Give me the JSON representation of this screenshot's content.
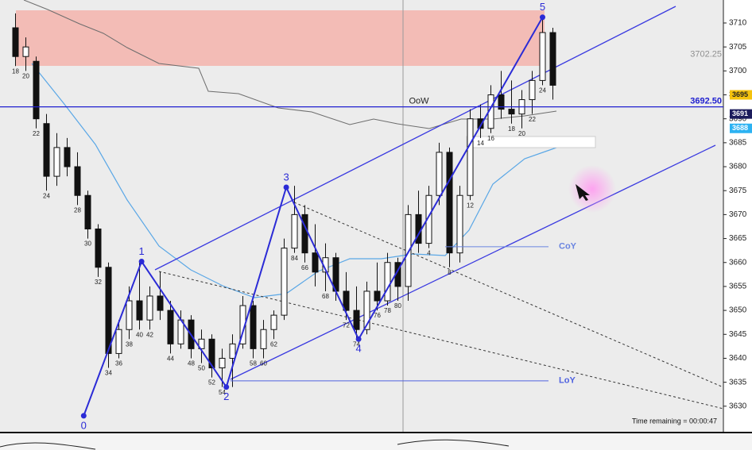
{
  "chart_data": {
    "type": "candlestick",
    "ylim": [
      3624.5,
      3714.8
    ],
    "yticks": [
      3630,
      3635,
      3640,
      3645,
      3650,
      3655,
      3660,
      3665,
      3670,
      3675,
      3680,
      3685,
      3690,
      3695,
      3700,
      3705,
      3710
    ],
    "xlim": [
      -1.5,
      68.5
    ],
    "x": [
      0,
      1,
      2,
      3,
      4,
      5,
      6,
      7,
      8,
      9,
      10,
      11,
      12,
      13,
      14,
      15,
      16,
      17,
      18,
      19,
      20,
      21,
      22,
      23,
      24,
      25,
      26,
      27,
      28,
      29,
      30,
      31,
      32,
      33,
      34,
      35,
      36,
      37,
      38,
      39,
      40,
      41,
      42,
      43,
      44,
      45,
      46,
      47,
      48,
      49,
      50,
      51,
      52
    ],
    "open": [
      3709,
      3703,
      3702,
      3689,
      3678,
      3684,
      3680,
      3674,
      3667,
      3659,
      3641,
      3646,
      3652,
      3648,
      3653,
      3650,
      3643,
      3648,
      3642,
      3644,
      3638,
      3640,
      3643,
      3651,
      3642,
      3646,
      3649,
      3663,
      3670,
      3662,
      3658,
      3661,
      3654,
      3650,
      3646,
      3654,
      3652,
      3660,
      3655,
      3670,
      3664,
      3674,
      3683,
      3662,
      3674,
      3690,
      3688,
      3695,
      3692,
      3691,
      3694,
      3698,
      3708
    ],
    "high": [
      3712,
      3707,
      3703,
      3691,
      3687,
      3686,
      3683,
      3675,
      3668,
      3660,
      3648,
      3655,
      3660,
      3655,
      3658,
      3652,
      3650,
      3649,
      3646,
      3645,
      3642,
      3645,
      3653,
      3652,
      3648,
      3650,
      3665,
      3676,
      3672,
      3668,
      3664,
      3662,
      3658,
      3655,
      3656,
      3660,
      3662,
      3661,
      3672,
      3675,
      3676,
      3685,
      3684,
      3676,
      3692,
      3693,
      3697,
      3700,
      3698,
      3696,
      3700,
      3711,
      3709
    ],
    "low": [
      3701,
      3700,
      3688,
      3675,
      3676,
      3678,
      3672,
      3665,
      3657,
      3638,
      3640,
      3644,
      3646,
      3646,
      3648,
      3641,
      3642,
      3640,
      3639,
      3636,
      3634,
      3634,
      3642,
      3640,
      3640,
      3644,
      3648,
      3662,
      3660,
      3655,
      3654,
      3652,
      3648,
      3644,
      3645,
      3650,
      3651,
      3652,
      3652,
      3662,
      3663,
      3672,
      3659,
      3660,
      3673,
      3686,
      3687,
      3690,
      3689,
      3688,
      3691,
      3697,
      3694
    ],
    "close": [
      3703,
      3705,
      3690,
      3678,
      3684,
      3680,
      3674,
      3667,
      3659,
      3641,
      3646,
      3652,
      3648,
      3653,
      3650,
      3643,
      3648,
      3642,
      3644,
      3638,
      3640,
      3643,
      3651,
      3642,
      3646,
      3649,
      3663,
      3670,
      3662,
      3658,
      3661,
      3654,
      3650,
      3646,
      3654,
      3652,
      3660,
      3655,
      3670,
      3664,
      3674,
      3683,
      3662,
      3674,
      3690,
      3688,
      3695,
      3692,
      3691,
      3694,
      3698,
      3708,
      3697
    ],
    "bar_labels": [
      "18",
      "20",
      "22",
      "24",
      null,
      null,
      "28",
      "30",
      "32",
      "34",
      "36",
      "38",
      "40",
      "42",
      null,
      "44",
      null,
      "48",
      "50",
      "52",
      "54",
      null,
      null,
      "58",
      "60",
      "62",
      null,
      "84",
      "66",
      null,
      "68",
      null,
      "72",
      "74",
      null,
      "76",
      "78",
      "80",
      null,
      null,
      "4",
      null,
      "8",
      null,
      "12",
      "14",
      "16",
      null,
      "18",
      "20",
      "22",
      "24",
      null
    ],
    "waves": {
      "color": "#2b2bd6",
      "labels": [
        "0",
        "1",
        "2",
        "3",
        "4",
        "5"
      ],
      "x": [
        6.6,
        12.2,
        20.4,
        26.2,
        33.2,
        51.0
      ],
      "values": [
        3628.0,
        3660.2,
        3634.0,
        3675.7,
        3644.0,
        3711.2
      ]
    },
    "levels": [
      {
        "value": 3692.5,
        "label": "3692.50",
        "note": "OoW",
        "color": "#2020d0",
        "line": true
      },
      {
        "value": 3702.25,
        "label": "3702.25",
        "color": "#909090",
        "line": false
      }
    ],
    "reference_lines": [
      {
        "label": "CoY",
        "value": 3663.3,
        "color": "#6a84e0"
      },
      {
        "label": "LoY",
        "value": 3635.3,
        "color": "#4f62e0"
      }
    ],
    "price_tags": [
      {
        "value": 3695,
        "color": "#f4c20d"
      },
      {
        "value": 3691,
        "color": "#1c1c5c"
      },
      {
        "value": 3688,
        "color": "#2cb2f2"
      }
    ],
    "footer": "Time remaining = 00:00:47"
  }
}
